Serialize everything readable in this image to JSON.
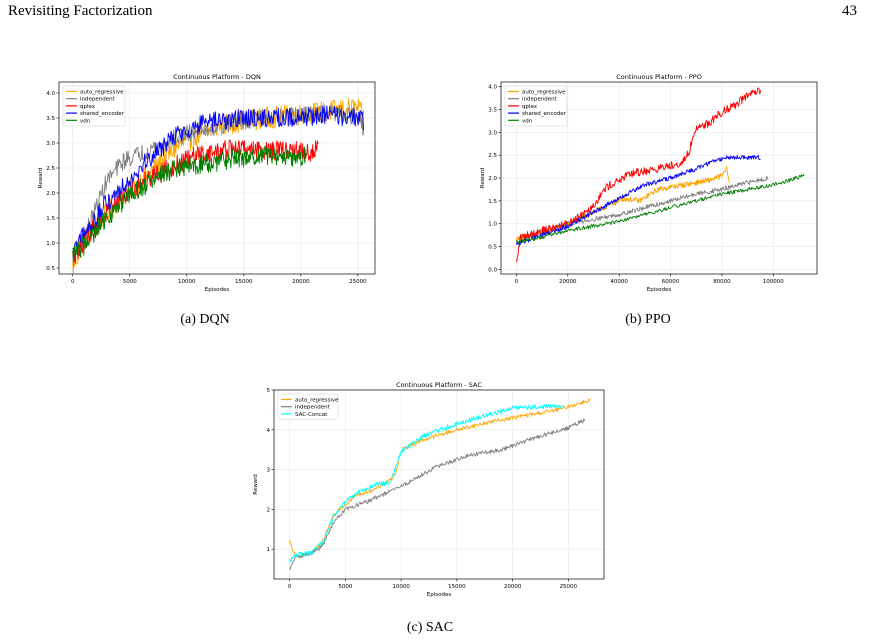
{
  "header": {
    "title": "Revisiting Factorization",
    "page_number": "43"
  },
  "captions": [
    "(a) DQN",
    "(b) PPO",
    "(c) SAC"
  ],
  "chart_data": [
    {
      "type": "line",
      "title": "Continuous Platform - DQN",
      "xlabel": "Episodes",
      "ylabel": "Reward",
      "xlim": [
        -1200,
        26500
      ],
      "ylim": [
        0.38,
        4.22
      ],
      "xticks": [
        0,
        5000,
        10000,
        15000,
        20000,
        25000
      ],
      "yticks": [
        0.5,
        1.0,
        1.5,
        2.0,
        2.5,
        3.0,
        3.5,
        4.0
      ],
      "xtick_labels": [
        "0",
        "5000",
        "10000",
        "15000",
        "20000",
        "25000"
      ],
      "ytick_labels": [
        "0.5",
        "1.0",
        "1.5",
        "2.0",
        "2.5",
        "3.0",
        "3.5",
        "4.0"
      ],
      "grid": true,
      "legend_position": "top-left",
      "series": [
        {
          "name": "auto_regressive",
          "color": "#ffa500",
          "noise": 0.22,
          "points": [
            [
              0,
              0.5
            ],
            [
              1000,
              1.05
            ],
            [
              3000,
              1.6
            ],
            [
              5000,
              2.05
            ],
            [
              7000,
              2.45
            ],
            [
              9000,
              2.9
            ],
            [
              11000,
              3.15
            ],
            [
              13000,
              3.35
            ],
            [
              15000,
              3.45
            ],
            [
              17000,
              3.5
            ],
            [
              19000,
              3.55
            ],
            [
              21000,
              3.6
            ],
            [
              23000,
              3.65
            ],
            [
              25000,
              3.7
            ],
            [
              25500,
              3.5
            ]
          ]
        },
        {
          "name": "independent",
          "color": "#808080",
          "noise": 0.18,
          "points": [
            [
              0,
              0.7
            ],
            [
              1000,
              1.1
            ],
            [
              3000,
              2.25
            ],
            [
              4500,
              2.65
            ],
            [
              7000,
              2.9
            ],
            [
              9000,
              3.1
            ],
            [
              11000,
              3.25
            ],
            [
              13000,
              3.35
            ],
            [
              15000,
              3.45
            ],
            [
              17000,
              3.5
            ],
            [
              20000,
              3.55
            ],
            [
              23000,
              3.6
            ],
            [
              25000,
              3.5
            ],
            [
              25500,
              3.3
            ]
          ]
        },
        {
          "name": "qplex",
          "color": "#ff0000",
          "noise": 0.2,
          "points": [
            [
              0,
              0.7
            ],
            [
              1000,
              1.05
            ],
            [
              3000,
              1.6
            ],
            [
              5000,
              2.05
            ],
            [
              7000,
              2.35
            ],
            [
              9000,
              2.55
            ],
            [
              11000,
              2.75
            ],
            [
              13000,
              2.85
            ],
            [
              15000,
              2.9
            ],
            [
              17000,
              2.85
            ],
            [
              19000,
              2.85
            ],
            [
              21000,
              2.8
            ],
            [
              21500,
              2.9
            ]
          ]
        },
        {
          "name": "shared_encoder",
          "color": "#0000ff",
          "noise": 0.2,
          "points": [
            [
              0,
              0.8
            ],
            [
              1000,
              1.15
            ],
            [
              3000,
              1.8
            ],
            [
              5000,
              2.3
            ],
            [
              7000,
              2.75
            ],
            [
              9000,
              3.15
            ],
            [
              11000,
              3.35
            ],
            [
              13000,
              3.45
            ],
            [
              15000,
              3.5
            ],
            [
              17000,
              3.5
            ],
            [
              19000,
              3.5
            ],
            [
              21000,
              3.55
            ],
            [
              23000,
              3.55
            ],
            [
              25000,
              3.5
            ],
            [
              25500,
              3.4
            ]
          ]
        },
        {
          "name": "vdn",
          "color": "#008000",
          "noise": 0.2,
          "points": [
            [
              0,
              0.75
            ],
            [
              1000,
              0.95
            ],
            [
              3000,
              1.5
            ],
            [
              5000,
              1.95
            ],
            [
              7000,
              2.25
            ],
            [
              9000,
              2.5
            ],
            [
              11000,
              2.55
            ],
            [
              13000,
              2.65
            ],
            [
              15000,
              2.7
            ],
            [
              17000,
              2.75
            ],
            [
              19000,
              2.7
            ],
            [
              20500,
              2.75
            ]
          ]
        }
      ]
    },
    {
      "type": "line",
      "title": "Continuous Platform - PPO",
      "xlabel": "Episodes",
      "ylabel": "Reward",
      "xlim": [
        -6000,
        117000
      ],
      "ylim": [
        -0.1,
        4.1
      ],
      "xticks": [
        0,
        20000,
        40000,
        60000,
        80000,
        100000
      ],
      "yticks": [
        0.0,
        0.5,
        1.0,
        1.5,
        2.0,
        2.5,
        3.0,
        3.5,
        4.0
      ],
      "xtick_labels": [
        "0",
        "20000",
        "40000",
        "60000",
        "80000",
        "100000"
      ],
      "ytick_labels": [
        "0.0",
        "0.5",
        "1.0",
        "1.5",
        "2.0",
        "2.5",
        "3.0",
        "3.5",
        "4.0"
      ],
      "grid": true,
      "legend_position": "top-left",
      "series": [
        {
          "name": "auto_regressive",
          "color": "#ffa500",
          "noise": 0.06,
          "points": [
            [
              0,
              0.65
            ],
            [
              10000,
              0.8
            ],
            [
              20000,
              1.0
            ],
            [
              30000,
              1.25
            ],
            [
              38000,
              1.45
            ],
            [
              42000,
              1.55
            ],
            [
              48000,
              1.5
            ],
            [
              55000,
              1.75
            ],
            [
              65000,
              1.85
            ],
            [
              75000,
              1.95
            ],
            [
              80000,
              2.05
            ],
            [
              82000,
              2.2
            ],
            [
              83000,
              1.85
            ]
          ]
        },
        {
          "name": "independent",
          "color": "#808080",
          "noise": 0.05,
          "points": [
            [
              0,
              0.6
            ],
            [
              10000,
              0.85
            ],
            [
              20000,
              1.0
            ],
            [
              30000,
              1.1
            ],
            [
              40000,
              1.2
            ],
            [
              50000,
              1.35
            ],
            [
              60000,
              1.5
            ],
            [
              70000,
              1.65
            ],
            [
              80000,
              1.75
            ],
            [
              90000,
              1.9
            ],
            [
              98000,
              2.0
            ]
          ]
        },
        {
          "name": "qplex",
          "color": "#ff0000",
          "noise": 0.09,
          "points": [
            [
              0,
              0.1
            ],
            [
              1500,
              0.7
            ],
            [
              10000,
              0.85
            ],
            [
              20000,
              1.0
            ],
            [
              30000,
              1.4
            ],
            [
              35000,
              1.8
            ],
            [
              45000,
              2.1
            ],
            [
              55000,
              2.2
            ],
            [
              65000,
              2.35
            ],
            [
              67000,
              2.55
            ],
            [
              70000,
              3.1
            ],
            [
              75000,
              3.2
            ],
            [
              80000,
              3.45
            ],
            [
              85000,
              3.6
            ],
            [
              90000,
              3.8
            ],
            [
              95000,
              3.9
            ]
          ]
        },
        {
          "name": "shared_encoder",
          "color": "#0000ff",
          "noise": 0.05,
          "points": [
            [
              0,
              0.55
            ],
            [
              10000,
              0.75
            ],
            [
              20000,
              0.95
            ],
            [
              30000,
              1.25
            ],
            [
              40000,
              1.55
            ],
            [
              50000,
              1.85
            ],
            [
              60000,
              2.0
            ],
            [
              70000,
              2.2
            ],
            [
              78000,
              2.4
            ],
            [
              82000,
              2.45
            ],
            [
              90000,
              2.45
            ],
            [
              95000,
              2.45
            ]
          ]
        },
        {
          "name": "vdn",
          "color": "#008000",
          "noise": 0.04,
          "points": [
            [
              0,
              0.6
            ],
            [
              10000,
              0.7
            ],
            [
              20000,
              0.85
            ],
            [
              30000,
              0.95
            ],
            [
              40000,
              1.05
            ],
            [
              50000,
              1.2
            ],
            [
              60000,
              1.35
            ],
            [
              70000,
              1.5
            ],
            [
              80000,
              1.65
            ],
            [
              90000,
              1.75
            ],
            [
              100000,
              1.85
            ],
            [
              112000,
              2.05
            ]
          ]
        }
      ]
    },
    {
      "type": "line",
      "title": "Continuous Platform - SAC",
      "xlabel": "Episodes",
      "ylabel": "Reward",
      "xlim": [
        -1400,
        28200
      ],
      "ylim": [
        0.25,
        5.0
      ],
      "xticks": [
        0,
        5000,
        10000,
        15000,
        20000,
        25000
      ],
      "yticks": [
        1,
        2,
        3,
        4,
        5
      ],
      "xtick_labels": [
        "0",
        "5000",
        "10000",
        "15000",
        "20000",
        "25000"
      ],
      "ytick_labels": [
        "1",
        "2",
        "3",
        "4",
        "5"
      ],
      "grid": true,
      "legend_position": "top-left",
      "series": [
        {
          "name": "auto_regressive",
          "color": "#ffa500",
          "noise": 0.05,
          "points": [
            [
              0,
              1.2
            ],
            [
              500,
              0.8
            ],
            [
              2000,
              0.9
            ],
            [
              3000,
              1.2
            ],
            [
              4000,
              1.9
            ],
            [
              6000,
              2.35
            ],
            [
              8000,
              2.55
            ],
            [
              9500,
              2.85
            ],
            [
              10000,
              3.5
            ],
            [
              12000,
              3.75
            ],
            [
              15000,
              4.0
            ],
            [
              18000,
              4.2
            ],
            [
              21000,
              4.35
            ],
            [
              24000,
              4.5
            ],
            [
              27000,
              4.75
            ]
          ]
        },
        {
          "name": "independent",
          "color": "#808080",
          "noise": 0.05,
          "points": [
            [
              0,
              0.45
            ],
            [
              500,
              0.8
            ],
            [
              2000,
              0.9
            ],
            [
              3000,
              1.1
            ],
            [
              4000,
              1.7
            ],
            [
              5000,
              2.0
            ],
            [
              7000,
              2.2
            ],
            [
              9000,
              2.45
            ],
            [
              10500,
              2.65
            ],
            [
              13000,
              3.05
            ],
            [
              16000,
              3.35
            ],
            [
              19000,
              3.5
            ],
            [
              22000,
              3.8
            ],
            [
              25000,
              4.05
            ],
            [
              26500,
              4.25
            ]
          ]
        },
        {
          "name": "SAC-Concat",
          "color": "#00ffff",
          "noise": 0.06,
          "points": [
            [
              0,
              0.7
            ],
            [
              500,
              0.85
            ],
            [
              2000,
              0.9
            ],
            [
              3000,
              1.2
            ],
            [
              4000,
              1.85
            ],
            [
              5000,
              2.2
            ],
            [
              6000,
              2.4
            ],
            [
              8000,
              2.65
            ],
            [
              9000,
              2.65
            ],
            [
              10000,
              3.45
            ],
            [
              12000,
              3.85
            ],
            [
              15000,
              4.15
            ],
            [
              18000,
              4.4
            ],
            [
              20000,
              4.55
            ],
            [
              24500,
              4.6
            ]
          ]
        }
      ]
    }
  ]
}
